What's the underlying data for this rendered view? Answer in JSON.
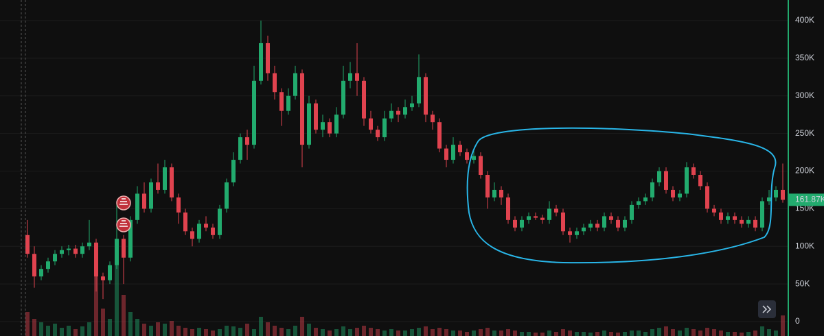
{
  "chart_data": {
    "type": "candlestick",
    "up_color": "#22ab6e",
    "down_color": "#e0434f",
    "ylim": [
      -19135,
      427350
    ],
    "yticks": [
      0,
      {
        "value": 50000,
        "label": "50K"
      },
      {
        "value": 100000,
        "label": "100K"
      },
      {
        "value": 150000,
        "label": "150K"
      },
      {
        "value": 200000,
        "label": "200K"
      },
      {
        "value": 250000,
        "label": "250K"
      },
      {
        "value": 300000,
        "label": "300K"
      },
      {
        "value": 350000,
        "label": "350K"
      },
      {
        "value": 400000,
        "label": "400K"
      }
    ],
    "grid": true,
    "last_price": {
      "value": 161870,
      "label": "161.87K"
    },
    "open": [
      115000,
      90000,
      60000,
      70000,
      80000,
      90000,
      95000,
      97000,
      90000,
      100000,
      105000,
      60000,
      55000,
      75000,
      110000,
      85000,
      135000,
      170000,
      150000,
      185000,
      175000,
      205000,
      165000,
      145000,
      120000,
      110000,
      130000,
      125000,
      115000,
      150000,
      185000,
      215000,
      245000,
      235000,
      320000,
      370000,
      330000,
      305000,
      280000,
      300000,
      330000,
      235000,
      290000,
      255000,
      265000,
      250000,
      275000,
      320000,
      330000,
      320000,
      270000,
      255000,
      245000,
      270000,
      280000,
      275000,
      285000,
      290000,
      325000,
      275000,
      265000,
      230000,
      215000,
      235000,
      225000,
      215000,
      220000,
      195000,
      165000,
      175000,
      165000,
      135000,
      125000,
      135000,
      140000,
      138000,
      135000,
      150000,
      145000,
      120000,
      115000,
      120000,
      125000,
      130000,
      125000,
      140000,
      135000,
      125000,
      135000,
      155000,
      160000,
      165000,
      185000,
      200000,
      175000,
      165000,
      170000,
      205000,
      195000,
      180000,
      150000,
      145000,
      135000,
      140000,
      135000,
      130000,
      135000,
      125000,
      160000,
      165000,
      175000
    ],
    "high": [
      135000,
      100000,
      75000,
      85000,
      95000,
      100000,
      102000,
      102000,
      105000,
      135000,
      110000,
      65000,
      80000,
      160000,
      115000,
      140000,
      180000,
      185000,
      190000,
      210000,
      215000,
      210000,
      170000,
      150000,
      125000,
      135000,
      140000,
      130000,
      155000,
      190000,
      225000,
      250000,
      255000,
      340000,
      400000,
      380000,
      340000,
      310000,
      310000,
      340000,
      335000,
      300000,
      295000,
      275000,
      270000,
      285000,
      340000,
      345000,
      370000,
      325000,
      280000,
      260000,
      280000,
      290000,
      285000,
      295000,
      300000,
      355000,
      330000,
      280000,
      270000,
      235000,
      245000,
      240000,
      230000,
      230000,
      225000,
      200000,
      185000,
      180000,
      170000,
      140000,
      140000,
      145000,
      145000,
      142000,
      160000,
      155000,
      150000,
      125000,
      125000,
      130000,
      135000,
      135000,
      145000,
      145000,
      140000,
      140000,
      160000,
      165000,
      170000,
      190000,
      205000,
      205000,
      180000,
      175000,
      212000,
      210000,
      200000,
      185000,
      155000,
      150000,
      145000,
      145000,
      140000,
      140000,
      140000,
      165000,
      175000,
      180000,
      210000
    ],
    "low": [
      85000,
      45000,
      55000,
      65000,
      75000,
      85000,
      88000,
      85000,
      85000,
      95000,
      40000,
      30000,
      50000,
      70000,
      50000,
      80000,
      130000,
      145000,
      145000,
      170000,
      170000,
      160000,
      130000,
      115000,
      100000,
      105000,
      120000,
      110000,
      110000,
      145000,
      180000,
      210000,
      215000,
      230000,
      315000,
      320000,
      295000,
      260000,
      275000,
      295000,
      205000,
      230000,
      250000,
      245000,
      245000,
      245000,
      270000,
      310000,
      300000,
      260000,
      250000,
      240000,
      240000,
      265000,
      265000,
      270000,
      280000,
      285000,
      265000,
      255000,
      225000,
      205000,
      210000,
      220000,
      210000,
      210000,
      190000,
      150000,
      160000,
      155000,
      130000,
      120000,
      120000,
      130000,
      135000,
      130000,
      130000,
      140000,
      115000,
      105000,
      110000,
      115000,
      120000,
      120000,
      120000,
      130000,
      120000,
      120000,
      130000,
      150000,
      155000,
      160000,
      180000,
      170000,
      160000,
      160000,
      165000,
      190000,
      175000,
      145000,
      140000,
      130000,
      130000,
      130000,
      125000,
      125000,
      120000,
      120000,
      155000,
      160000,
      158000
    ],
    "close": [
      90000,
      60000,
      70000,
      80000,
      90000,
      95000,
      97000,
      90000,
      100000,
      105000,
      60000,
      55000,
      75000,
      110000,
      85000,
      135000,
      170000,
      150000,
      185000,
      175000,
      205000,
      165000,
      145000,
      120000,
      110000,
      130000,
      125000,
      115000,
      150000,
      185000,
      215000,
      245000,
      235000,
      320000,
      370000,
      330000,
      305000,
      280000,
      300000,
      330000,
      235000,
      290000,
      255000,
      265000,
      250000,
      275000,
      320000,
      330000,
      320000,
      270000,
      255000,
      245000,
      270000,
      280000,
      275000,
      285000,
      290000,
      325000,
      275000,
      265000,
      230000,
      215000,
      235000,
      225000,
      215000,
      220000,
      195000,
      165000,
      175000,
      165000,
      135000,
      125000,
      135000,
      140000,
      138000,
      135000,
      150000,
      145000,
      120000,
      115000,
      120000,
      125000,
      130000,
      125000,
      140000,
      135000,
      125000,
      135000,
      155000,
      160000,
      165000,
      185000,
      200000,
      175000,
      165000,
      170000,
      205000,
      195000,
      180000,
      150000,
      145000,
      135000,
      140000,
      135000,
      130000,
      135000,
      125000,
      160000,
      165000,
      175000,
      161870
    ],
    "volume": [
      35,
      25,
      20,
      15,
      18,
      12,
      15,
      10,
      14,
      20,
      130,
      40,
      25,
      110,
      60,
      35,
      25,
      18,
      15,
      20,
      18,
      22,
      15,
      12,
      10,
      12,
      10,
      8,
      10,
      15,
      14,
      12,
      18,
      10,
      28,
      20,
      15,
      12,
      10,
      15,
      28,
      18,
      12,
      10,
      8,
      10,
      14,
      10,
      12,
      15,
      12,
      10,
      8,
      10,
      8,
      8,
      10,
      12,
      14,
      10,
      12,
      10,
      8,
      8,
      6,
      8,
      10,
      12,
      8,
      8,
      10,
      8,
      6,
      6,
      5,
      5,
      8,
      6,
      10,
      8,
      6,
      6,
      5,
      6,
      8,
      6,
      5,
      6,
      8,
      8,
      6,
      10,
      12,
      14,
      10,
      8,
      12,
      10,
      8,
      12,
      10,
      8,
      6,
      6,
      5,
      6,
      8,
      14,
      10,
      8,
      30
    ]
  }
}
